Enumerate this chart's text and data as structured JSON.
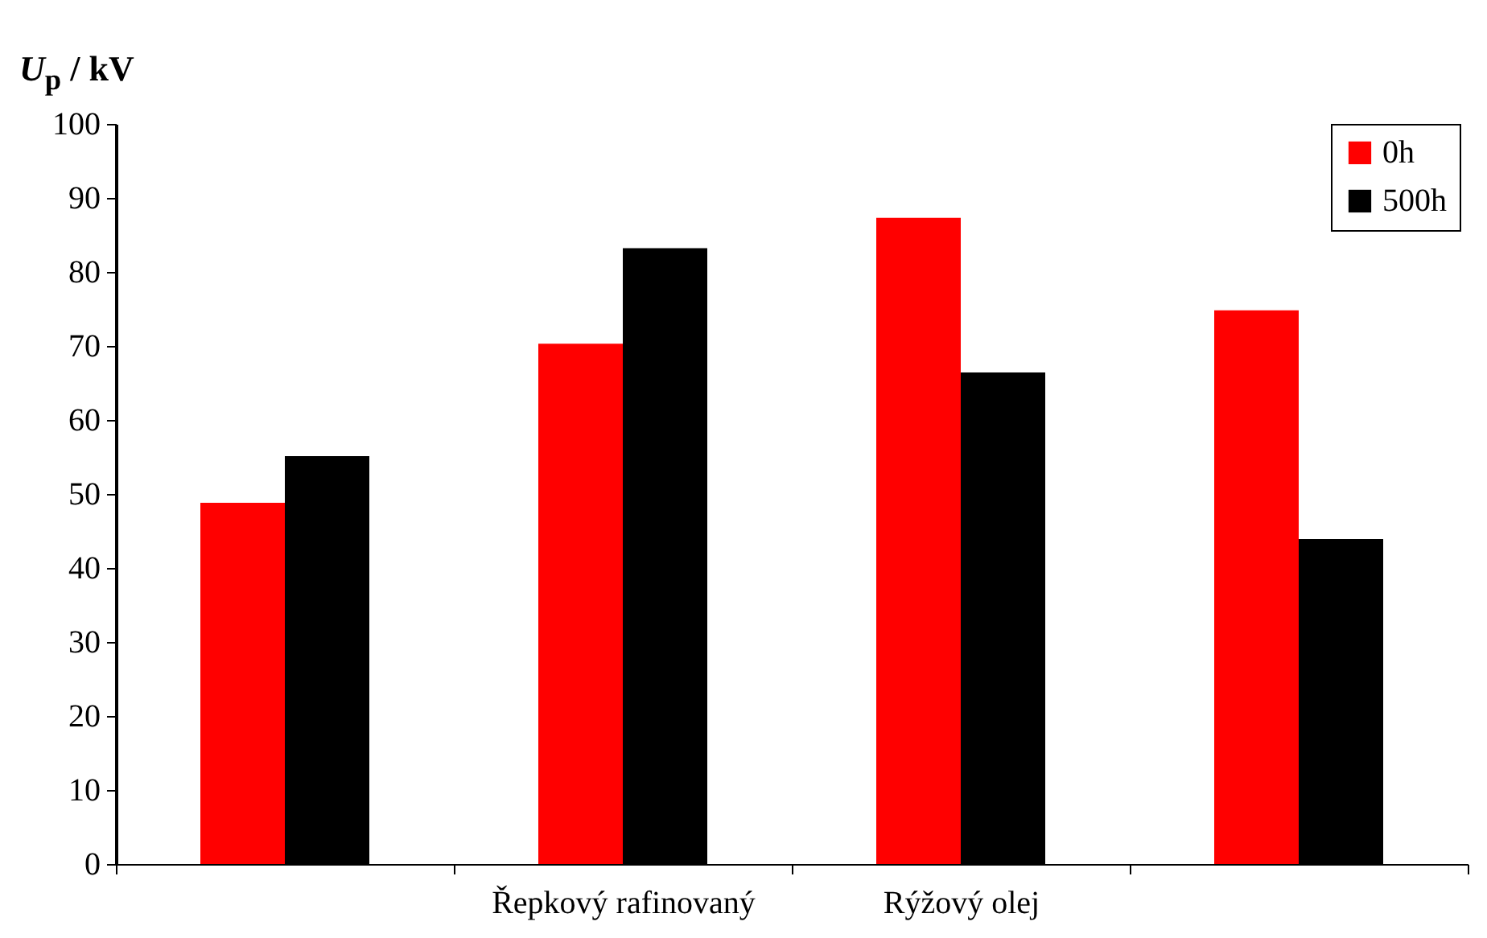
{
  "chart_data": {
    "type": "bar",
    "ylabel": "U$_{p}$ / kV",
    "categories": [
      null,
      "Řepkový rafinovaný",
      "Rýžový olej",
      null
    ],
    "series": [
      {
        "name": "0h",
        "color": "#ff0000",
        "values": [
          48.8,
          70.3,
          87.3,
          74.8
        ]
      },
      {
        "name": "500h",
        "color": "#000000",
        "values": [
          55.1,
          83.2,
          66.4,
          43.9
        ]
      }
    ],
    "ylim": [
      0,
      100
    ],
    "yticks": [
      0,
      10,
      20,
      30,
      40,
      50,
      60,
      70,
      80,
      90,
      100
    ],
    "grid": false,
    "legend": "top right"
  }
}
